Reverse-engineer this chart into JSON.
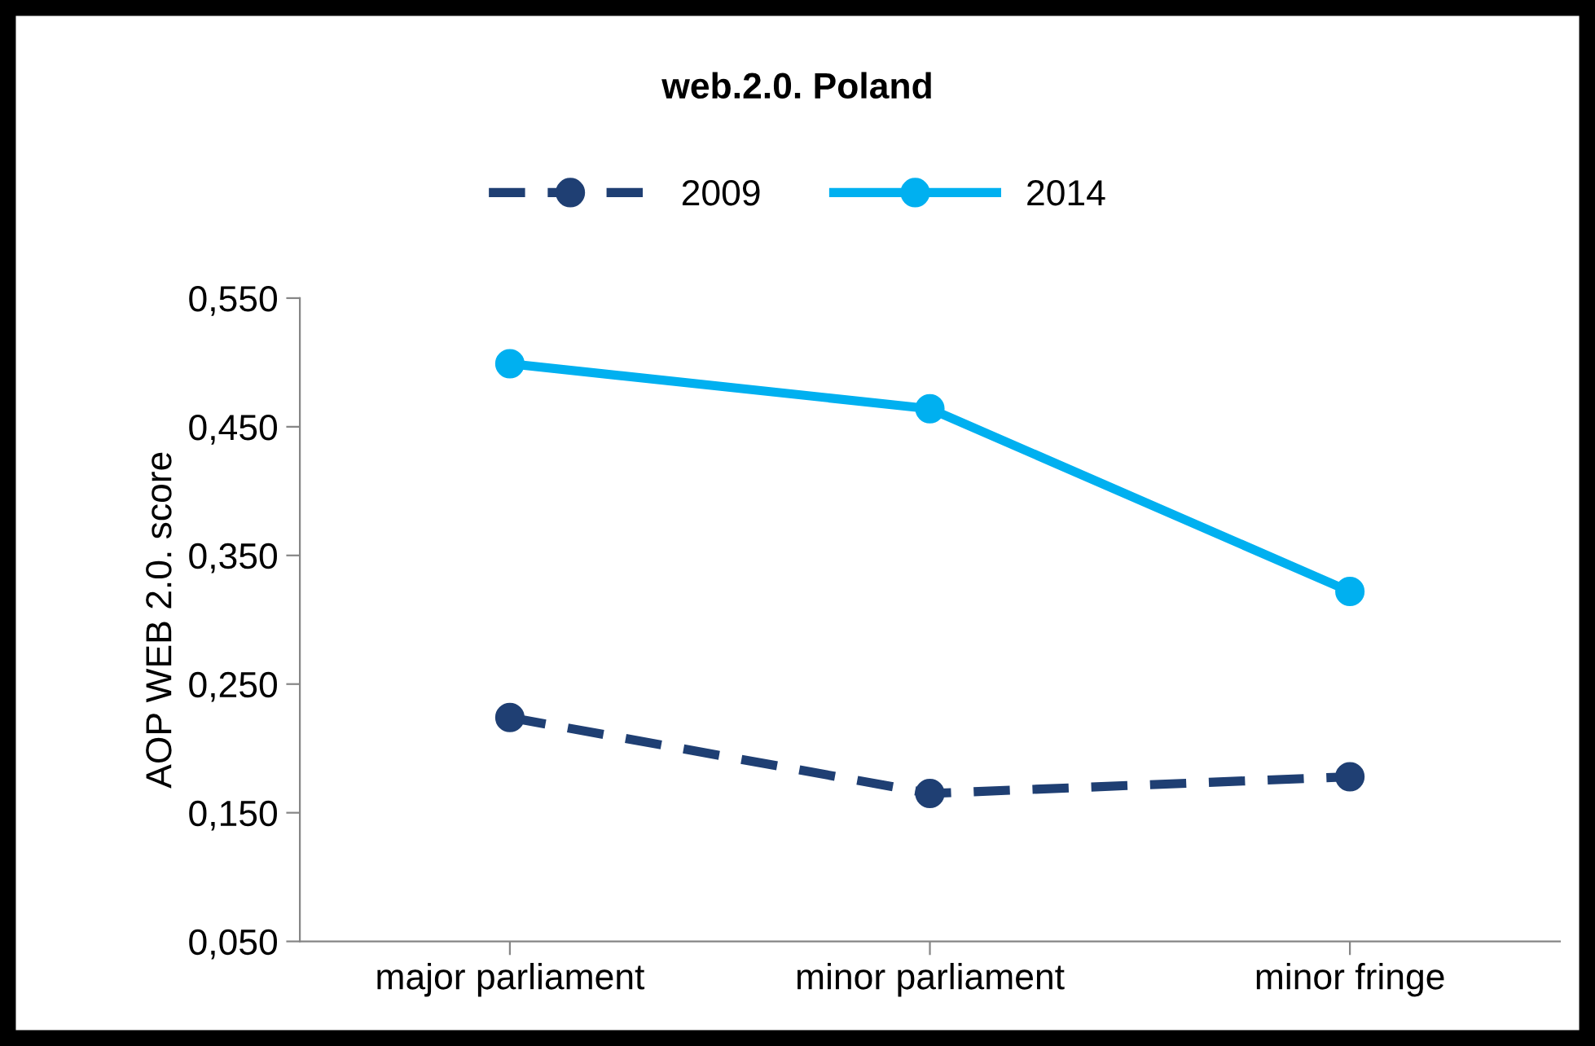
{
  "chart_data": {
    "type": "line",
    "title": "web.2.0. Poland",
    "ylabel": "AOP WEB 2.0. score",
    "categories": [
      "major parliament",
      "minor parliament",
      "minor fringe"
    ],
    "series": [
      {
        "name": "2009",
        "color": "#1f3f73",
        "values": [
          0.224,
          0.165,
          0.178
        ],
        "line_style": "dashed",
        "marker": "circle"
      },
      {
        "name": "2014",
        "color": "#00b0f0",
        "values": [
          0.499,
          0.464,
          0.322
        ],
        "line_style": "solid",
        "marker": "circle"
      }
    ],
    "ylim": [
      0.05,
      0.55
    ],
    "yticks": [
      {
        "value": 0.05,
        "label": "0,050"
      },
      {
        "value": 0.15,
        "label": "0,150"
      },
      {
        "value": 0.25,
        "label": "0,250"
      },
      {
        "value": 0.35,
        "label": "0,350"
      },
      {
        "value": 0.45,
        "label": "0,450"
      },
      {
        "value": 0.55,
        "label": "0,550"
      }
    ],
    "grid": false,
    "legend": "top"
  }
}
